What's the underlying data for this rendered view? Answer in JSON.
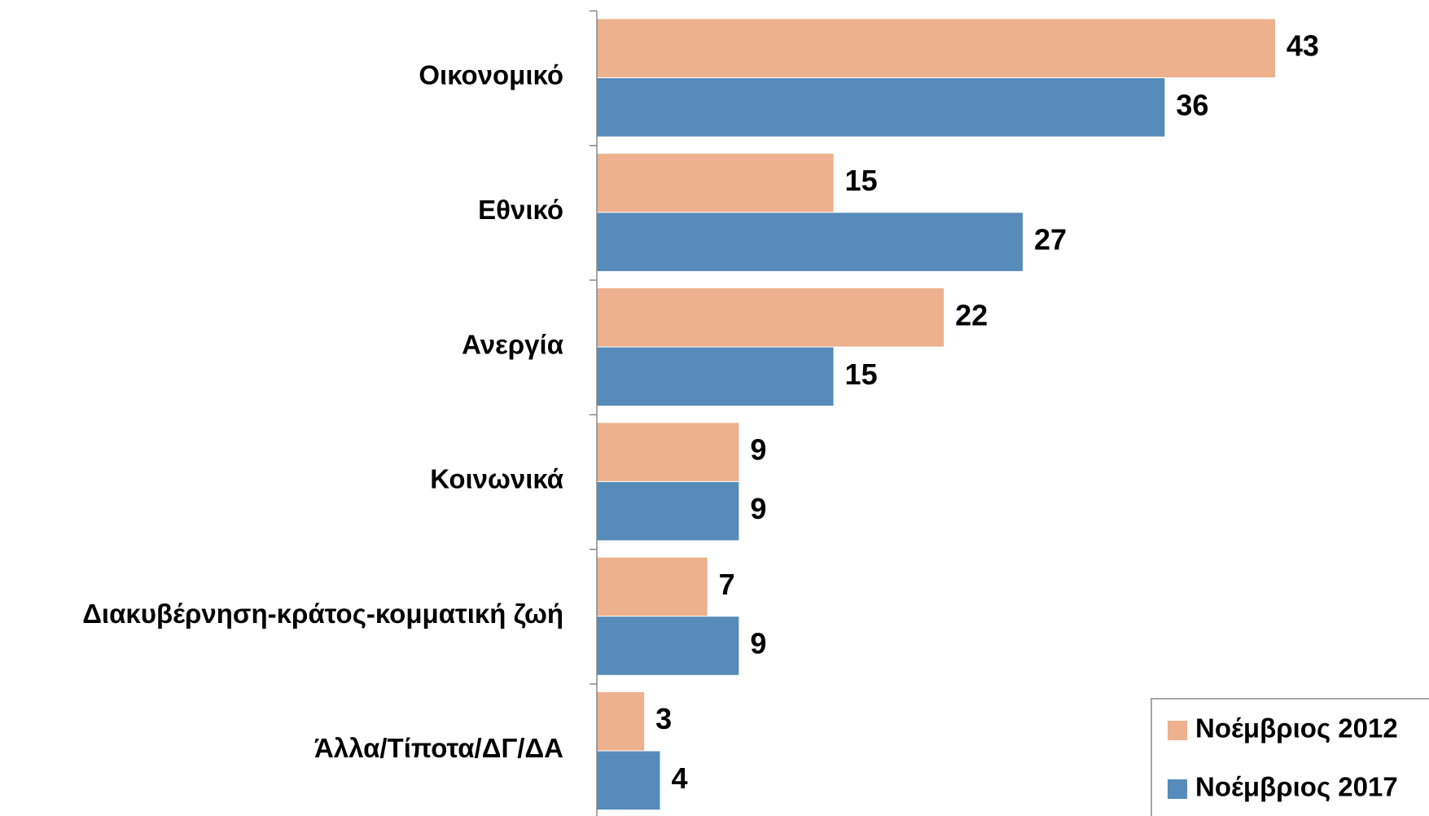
{
  "chart_data": {
    "type": "hbar",
    "categories": [
      "Οικονομικό",
      "Εθνικό",
      "Ανεργία",
      "Κοινωνικά",
      "Διακυβέρνηση-κράτος-κομματική ζωή",
      "Άλλα/Τίποτα/ΔΓ/ΔΑ"
    ],
    "series": [
      {
        "name": "Νοέμβριος 2012",
        "color": "#edb18f",
        "values": [
          43,
          15,
          22,
          9,
          7,
          3
        ]
      },
      {
        "name": "Νοέμβριος 2017",
        "color": "#568bba",
        "values": [
          36,
          27,
          15,
          9,
          9,
          4
        ]
      }
    ],
    "legend": "bottom-right"
  }
}
